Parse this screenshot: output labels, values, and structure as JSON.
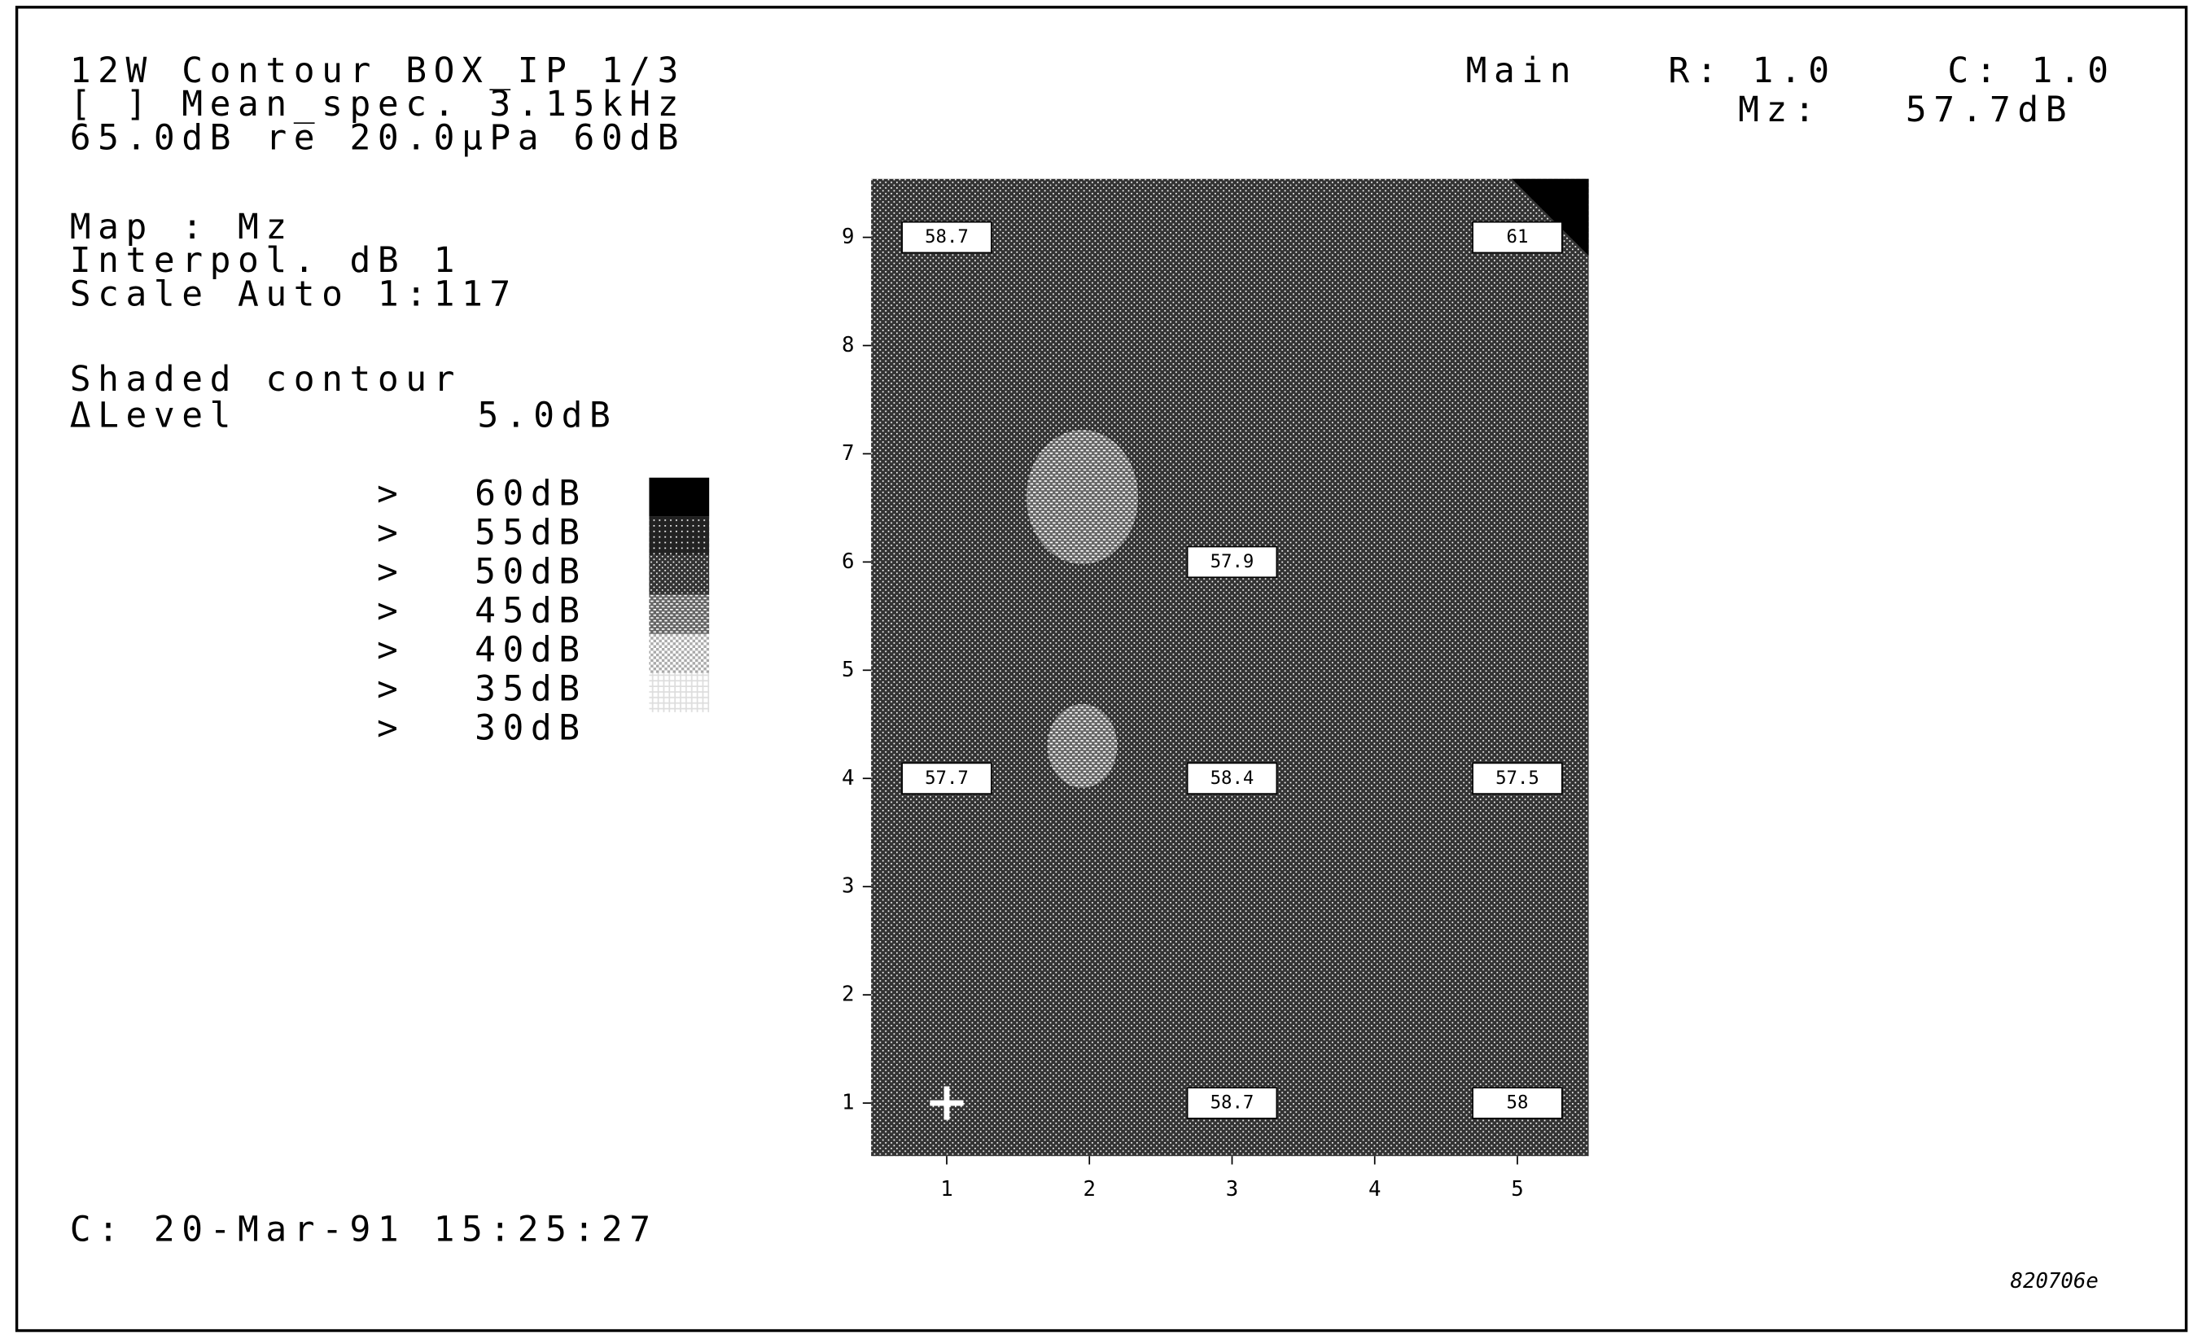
{
  "header": {
    "lines": [
      "12W Contour BOX_IP 1/3",
      "[ ] Mean_spec.   3.15kHz",
      "65.0dB re 20.0µPa 60dB"
    ]
  },
  "map_settings": {
    "lines": [
      "Map : Mz",
      "Interpol. dB 1",
      "Scale Auto 1:117"
    ]
  },
  "shading": {
    "mode": "Shaded contour",
    "level_label": "ΔLevel",
    "level_value": "5.0dB"
  },
  "legend": {
    "items": [
      {
        "marker": ">",
        "label": "60dB"
      },
      {
        "marker": ">",
        "label": "55dB"
      },
      {
        "marker": ">",
        "label": "50dB"
      },
      {
        "marker": ">",
        "label": "45dB"
      },
      {
        "marker": ">",
        "label": "40dB"
      },
      {
        "marker": ">",
        "label": "35dB"
      },
      {
        "marker": ">",
        "label": "30dB"
      }
    ]
  },
  "status": {
    "view": "Main",
    "row": "R: 1.0",
    "col": "C: 1.0",
    "quantity": "Mz:",
    "reading": "57.7dB"
  },
  "footer": {
    "timestamp": "C: 20-Mar-91 15:25:27",
    "figure_id": "820706e"
  },
  "map": {
    "xlim": [
      0.47,
      5.5
    ],
    "ylim": [
      0.51,
      9.54
    ],
    "xticks": [
      1,
      2,
      3,
      4,
      5
    ],
    "yticks": [
      1,
      2,
      3,
      4,
      5,
      6,
      7,
      8,
      9
    ],
    "point_labels": [
      {
        "x": 1,
        "y": 9,
        "label": "58.7"
      },
      {
        "x": 5,
        "y": 9,
        "label": "61"
      },
      {
        "x": 3,
        "y": 6,
        "label": "57.9"
      },
      {
        "x": 1,
        "y": 4,
        "label": "57.7"
      },
      {
        "x": 3,
        "y": 4,
        "label": "58.4"
      },
      {
        "x": 5,
        "y": 4,
        "label": "57.5"
      },
      {
        "x": 3,
        "y": 1,
        "label": "58.7"
      },
      {
        "x": 5,
        "y": 1,
        "label": "58"
      }
    ]
  }
}
